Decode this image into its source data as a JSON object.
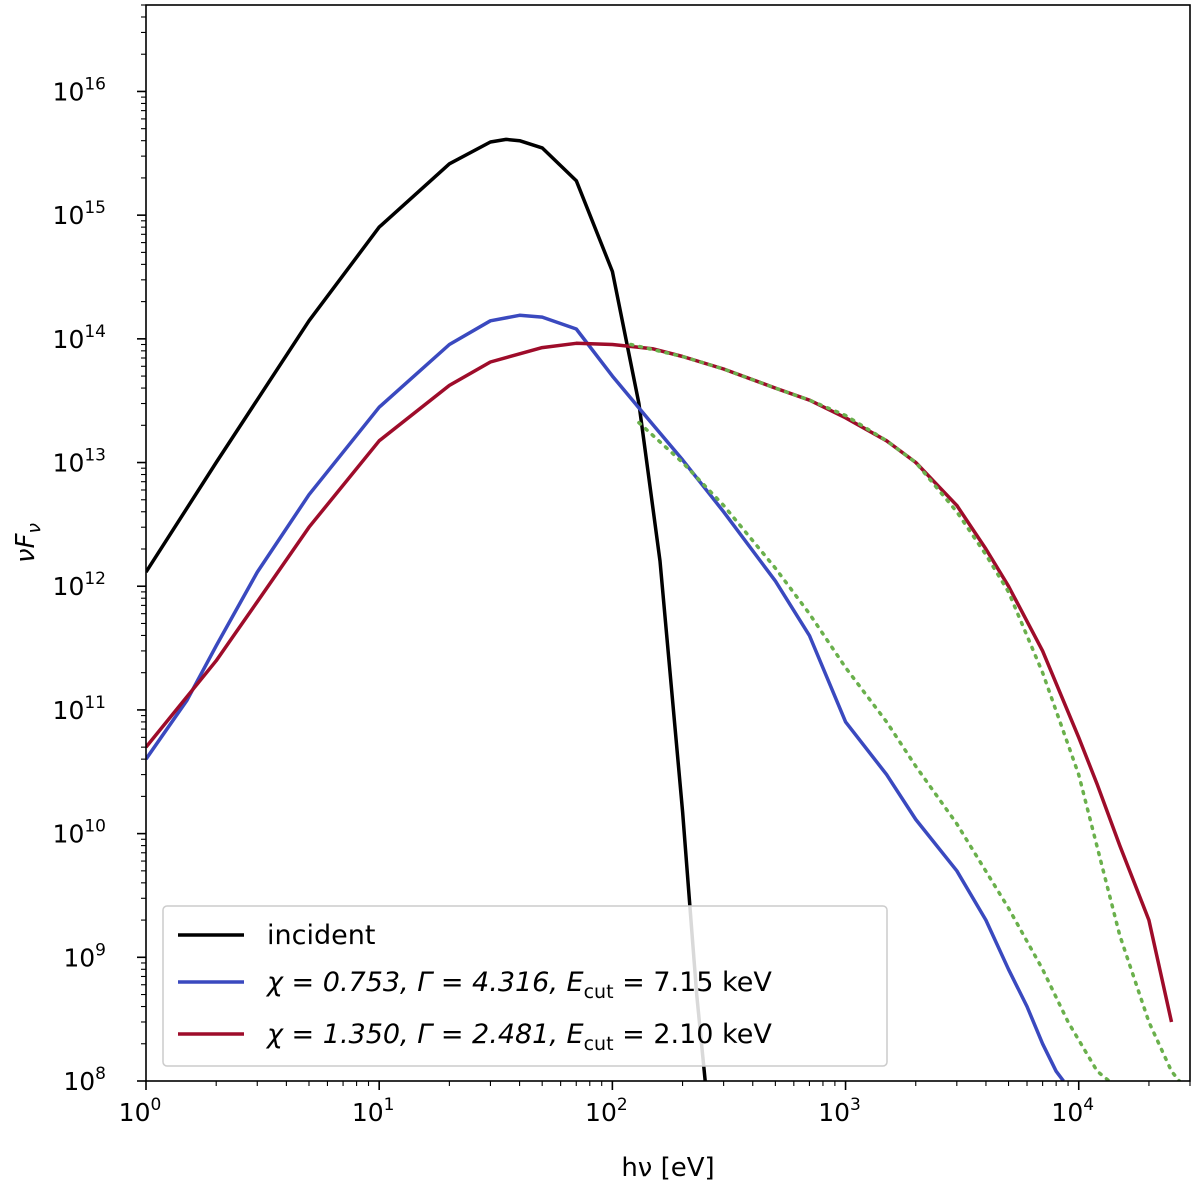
{
  "chart_data": {
    "type": "line",
    "xlabel": "hν [eV]",
    "ylabel": "νF_ν",
    "xscale": "log",
    "yscale": "log",
    "xlim": [
      1,
      30000
    ],
    "ylim": [
      100000000.0,
      5e+16
    ],
    "x_ticks": [
      {
        "base": "10",
        "exp": "0",
        "value": 1
      },
      {
        "base": "10",
        "exp": "1",
        "value": 10
      },
      {
        "base": "10",
        "exp": "2",
        "value": 100
      },
      {
        "base": "10",
        "exp": "3",
        "value": 1000
      },
      {
        "base": "10",
        "exp": "4",
        "value": 10000
      }
    ],
    "y_ticks": [
      {
        "base": "10",
        "exp": "8",
        "value": 100000000.0
      },
      {
        "base": "10",
        "exp": "9",
        "value": 1000000000.0
      },
      {
        "base": "10",
        "exp": "10",
        "value": 10000000000.0
      },
      {
        "base": "10",
        "exp": "11",
        "value": 100000000000.0
      },
      {
        "base": "10",
        "exp": "12",
        "value": 1000000000000.0
      },
      {
        "base": "10",
        "exp": "13",
        "value": 10000000000000.0
      },
      {
        "base": "10",
        "exp": "14",
        "value": 100000000000000.0
      },
      {
        "base": "10",
        "exp": "15",
        "value": 1000000000000000.0
      },
      {
        "base": "10",
        "exp": "16",
        "value": 1e+16
      }
    ],
    "legend_position": "lower-left",
    "series": [
      {
        "name": "incident",
        "color": "#000000",
        "style": "solid",
        "x": [
          1,
          2,
          5,
          10,
          20,
          30,
          35,
          40,
          50,
          70,
          100,
          130,
          160,
          200,
          230,
          250
        ],
        "y": [
          1300000000000.0,
          10000000000000.0,
          140000000000000.0,
          800000000000000.0,
          2600000000000000.0,
          3900000000000000.0,
          4100000000000000.0,
          4000000000000000.0,
          3500000000000000.0,
          1900000000000000.0,
          350000000000000.0,
          30000000000000.0,
          1600000000000.0,
          15000000000.0,
          500000000.0,
          100000000.0
        ]
      },
      {
        "name": "χ = 0.753, Γ = 4.316, E_cut = 7.15 keV",
        "label_parts": {
          "chi": "χ = 0.753, Γ = 4.316, ",
          "e": "E",
          "cut": "cut",
          "rest": " = 7.15 keV"
        },
        "color": "#3a49bf",
        "style": "solid",
        "x": [
          1,
          1.5,
          2,
          3,
          5,
          10,
          20,
          30,
          40,
          50,
          70,
          100,
          150,
          200,
          300,
          500,
          700,
          1000,
          1500,
          2000,
          3000,
          4000,
          5000,
          6000,
          7000,
          8000,
          8600
        ],
        "y": [
          40000000000.0,
          120000000000.0,
          330000000000.0,
          1300000000000.0,
          5500000000000.0,
          28000000000000.0,
          90000000000000.0,
          140000000000000.0,
          155000000000000.0,
          150000000000000.0,
          120000000000000.0,
          50000000000000.0,
          20000000000000.0,
          10500000000000.0,
          4000000000000.0,
          1100000000000.0,
          400000000000.0,
          80000000000.0,
          30000000000.0,
          13000000000.0,
          5000000000.0,
          2000000000.0,
          800000000.0,
          400000000.0,
          200000000.0,
          120000000.0,
          100000000.0
        ]
      },
      {
        "name": "χ = 1.350, Γ = 2.481, E_cut = 2.10 keV",
        "label_parts": {
          "chi": "χ = 1.350, Γ = 2.481, ",
          "e": "E",
          "cut": "cut",
          "rest": " = 2.10 keV"
        },
        "color": "#9e0c2a",
        "style": "solid",
        "x": [
          1,
          2,
          3,
          5,
          10,
          20,
          30,
          50,
          70,
          100,
          150,
          200,
          300,
          500,
          700,
          1000,
          1500,
          2000,
          3000,
          4000,
          5000,
          7000,
          10000,
          12000,
          15000,
          20000,
          25000
        ],
        "y": [
          50000000000.0,
          250000000000.0,
          750000000000.0,
          3000000000000.0,
          15000000000000.0,
          42000000000000.0,
          65000000000000.0,
          85000000000000.0,
          92000000000000.0,
          90000000000000.0,
          83000000000000.0,
          72000000000000.0,
          57000000000000.0,
          40000000000000.0,
          32000000000000.0,
          23000000000000.0,
          15000000000000.0,
          10000000000000.0,
          4500000000000.0,
          2000000000000.0,
          1000000000000.0,
          300000000000.0,
          60000000000.0,
          25000000000.0,
          8000000000.0,
          2000000000.0,
          300000000.0
        ]
      },
      {
        "color": "#6ab04c",
        "style": "dotted",
        "x": [
          130,
          200,
          300,
          500,
          700,
          1000,
          1500,
          2000,
          3000,
          5000,
          7000,
          9000,
          12000,
          13500
        ],
        "y": [
          21000000000000.0,
          10000000000000.0,
          4500000000000.0,
          1400000000000.0,
          600000000000.0,
          220000000000.0,
          80000000000.0,
          35000000000.0,
          12000000000.0,
          2500000000.0,
          800000000.0,
          300000000.0,
          120000000.0,
          100000000.0
        ]
      },
      {
        "color": "#6ab04c",
        "style": "dotted",
        "x": [
          120,
          200,
          300,
          500,
          700,
          1000,
          1500,
          2000,
          3000,
          4000,
          5000,
          7000,
          10000,
          15000,
          20000,
          25000,
          27000
        ],
        "y": [
          90000000000000.0,
          72000000000000.0,
          57000000000000.0,
          40000000000000.0,
          32000000000000.0,
          24000000000000.0,
          15000000000000.0,
          10000000000000.0,
          4000000000000.0,
          1800000000000.0,
          900000000000.0,
          200000000000.0,
          30000000000.0,
          1500000000.0,
          300000000.0,
          120000000.0,
          100000000.0
        ]
      }
    ]
  }
}
